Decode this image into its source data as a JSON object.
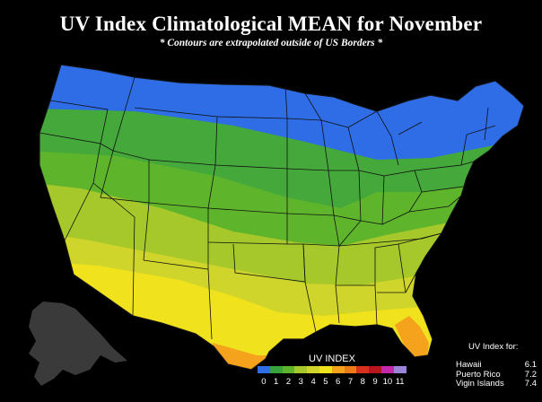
{
  "title": "UV Index Climatological MEAN for November",
  "subtitle": "* Contours are extrapolated outside of US Borders *",
  "legend": {
    "title": "UV INDEX",
    "labels": [
      "0",
      "1",
      "2",
      "3",
      "4",
      "5",
      "6",
      "7",
      "8",
      "9",
      "10",
      "11"
    ],
    "colors": [
      "#2f6de6",
      "#38a33a",
      "#5eb52c",
      "#a7c82a",
      "#cfd52a",
      "#f0e21c",
      "#f5a21c",
      "#ec7a18",
      "#d7301f",
      "#b8151e",
      "#c22aa8",
      "#9b85d6"
    ]
  },
  "uv_for": {
    "title": "UV Index for:",
    "rows": [
      {
        "place": "Hawaii",
        "value": "6.1"
      },
      {
        "place": "Puerto Rico",
        "value": "7.2"
      },
      {
        "place": "Vigin Islands",
        "value": "7.4"
      }
    ]
  },
  "map_colors": {
    "band_1": "#2f6de6",
    "band_2": "#45a83a",
    "band_3": "#5eb52c",
    "band_4": "#a7c82a",
    "band_5": "#cfd52a",
    "band_6": "#f0e21c",
    "band_7": "#f5a21c",
    "alaska": "#3a3a3a",
    "borders": "#111111"
  }
}
